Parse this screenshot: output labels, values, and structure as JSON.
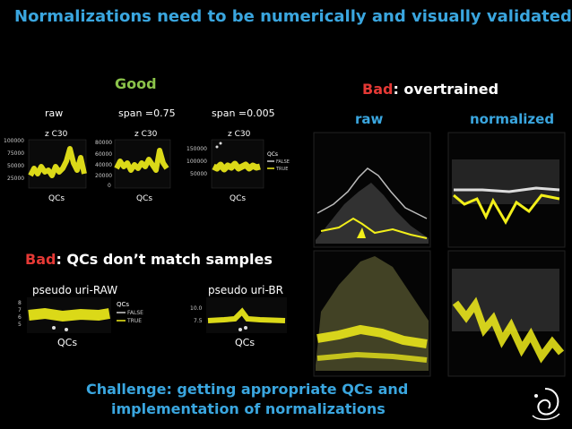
{
  "title": "Normalizations need to be numerically and visually validated",
  "good_label": "Good",
  "bad_overtrained": {
    "bad": "Bad",
    "rest": ": overtrained"
  },
  "bad_qc": {
    "bad": "Bad",
    "rest": ": QCs don’t match samples"
  },
  "challenge": {
    "line1": "Challenge: getting appropriate QCs and",
    "line2": "implementation of normalizations"
  },
  "good_plots": [
    {
      "title": "raw",
      "subtitle": "z C30",
      "xlabel": "QCs",
      "yticks": [
        "100000",
        "75000",
        "50000",
        "25000"
      ]
    },
    {
      "title": "span =0.75",
      "subtitle": "z C30",
      "xlabel": "QCs",
      "yticks": [
        "80000",
        "60000",
        "40000",
        "20000",
        "0"
      ]
    },
    {
      "title": "span =0.005",
      "subtitle": "z C30",
      "xlabel": "QCs",
      "yticks": [
        "150000",
        "100000",
        "50000"
      ]
    }
  ],
  "good_legend": {
    "title": "QCs",
    "items": [
      "FALSE",
      "TRUE"
    ]
  },
  "over_titles": {
    "raw": "raw",
    "normalized": "normalized"
  },
  "bad_qc_plots": [
    {
      "title": "pseudo uri-RAW",
      "xlabel": "QCs",
      "yticks": [
        "8",
        "7",
        "6",
        "5"
      ],
      "legend_title": "QCs",
      "legend_items": [
        "FALSE",
        "TRUE"
      ]
    },
    {
      "title": "pseudo uri-BR",
      "xlabel": "QCs",
      "yticks": [
        "10.0",
        "7.5"
      ]
    }
  ],
  "colors": {
    "title_blue": "#3aa6df",
    "good_green": "#8bc34a",
    "bad_red": "#e53935",
    "qc_yellow": "#f2ef1a"
  },
  "icons": {
    "logo": "society-logo-icon"
  }
}
